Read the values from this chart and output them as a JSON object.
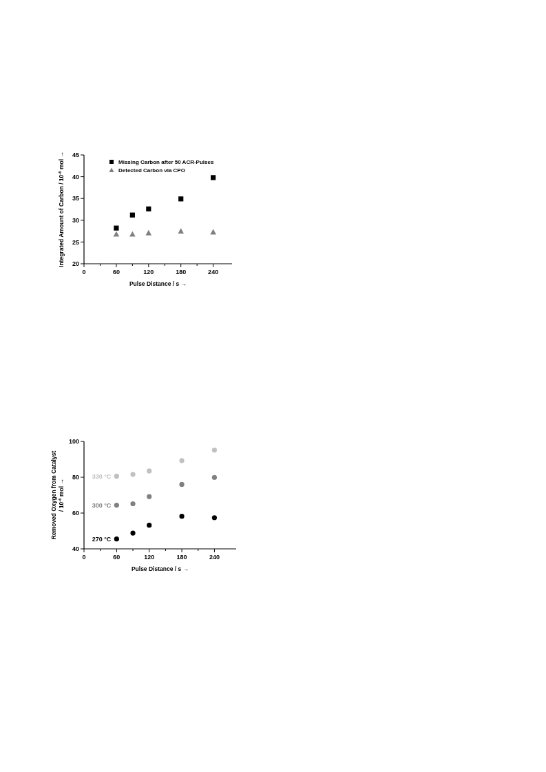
{
  "chart_data": [
    {
      "type": "scatter",
      "xlabel": "Pulse Distance / s →",
      "ylabel": "Integrated Amount of Carbon / 10$^{-6}$ mol →",
      "x": [
        60,
        90,
        120,
        180,
        240
      ],
      "xlim": [
        0,
        275
      ],
      "xticks": [
        0,
        {
          "value": 30,
          "label": null
        },
        60,
        {
          "value": 90,
          "label": null
        },
        120,
        {
          "value": 150,
          "label": null
        },
        180,
        {
          "value": 210,
          "label": null
        },
        240
      ],
      "ylim": [
        20,
        45
      ],
      "yticks": [
        20,
        25,
        30,
        35,
        40,
        45
      ],
      "legend": "top left",
      "grid": false,
      "series": [
        {
          "name": "Missing Carbon after 50 ACR-Pulses",
          "color": "#000000",
          "marker": "square",
          "values": [
            28.2,
            31.2,
            32.6,
            34.9,
            39.8
          ]
        },
        {
          "name": "Detected Carbon via CPO",
          "color": "#808080",
          "marker": "triangle",
          "values": [
            26.8,
            26.8,
            27.1,
            27.5,
            27.3
          ]
        }
      ]
    },
    {
      "type": "scatter",
      "xlabel": "Pulse Distance / s →",
      "ylabel": "Removed Oxygen from Catalyst\n/ 10$^{-6}$ mol →",
      "x": [
        60,
        90,
        120,
        180,
        240
      ],
      "xlim": [
        0,
        280
      ],
      "xticks": [
        0,
        {
          "value": 30,
          "label": null
        },
        60,
        {
          "value": 90,
          "label": null
        },
        120,
        {
          "value": 150,
          "label": null
        },
        180,
        {
          "value": 210,
          "label": null
        },
        240
      ],
      "ylim": [
        40,
        100
      ],
      "yticks": [
        40,
        60,
        80,
        100
      ],
      "legend": false,
      "grid": false,
      "series": [
        {
          "name": "270 °C",
          "color": "#000000",
          "marker": "circle",
          "values": [
            45.5,
            48.8,
            53.2,
            58.2,
            57.4
          ]
        },
        {
          "name": "300 °C",
          "color": "#808080",
          "marker": "circle",
          "values": [
            64.4,
            65.2,
            69.2,
            76.0,
            79.9
          ]
        },
        {
          "name": "330 °C",
          "color": "#c0c0c0",
          "marker": "circle",
          "values": [
            80.6,
            81.6,
            83.5,
            89.3,
            95.2
          ]
        }
      ]
    }
  ]
}
